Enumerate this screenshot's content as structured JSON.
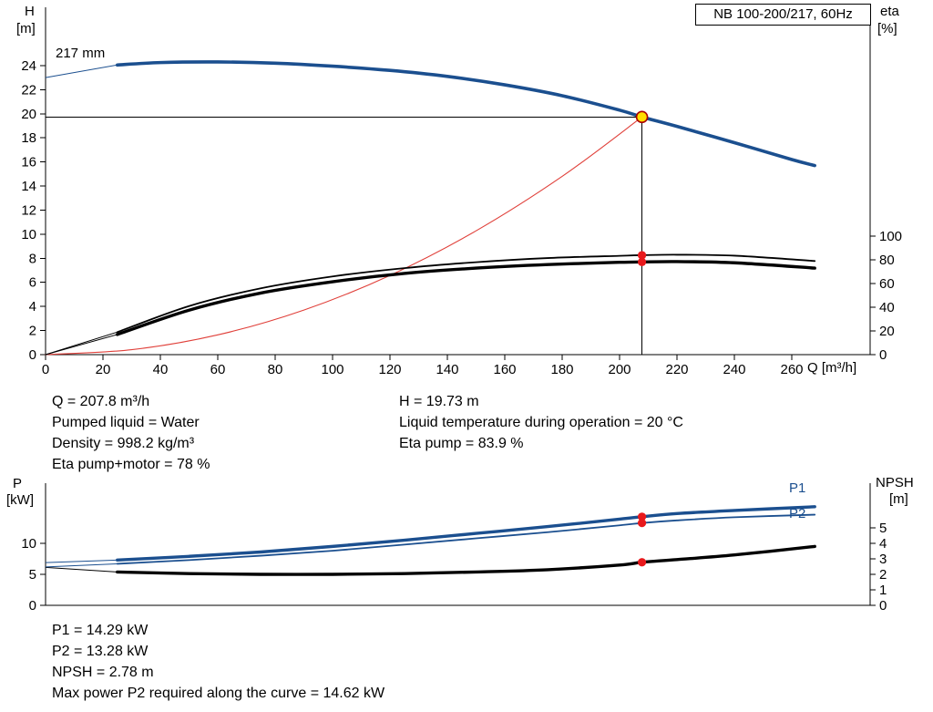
{
  "title_box": "NB 100-200/217, 60Hz",
  "labels": {
    "h": "H",
    "h_unit": "[m]",
    "eta": "eta",
    "eta_unit": "[%]",
    "q": "Q [m³/h]",
    "p": "P",
    "p_unit": "[kW]",
    "npsh": "NPSH",
    "npsh_unit": "[m]",
    "curve": "217 mm",
    "p1": "P1",
    "p2": "P2"
  },
  "info_top_left": [
    "Q = 207.8 m³/h",
    "Pumped liquid = Water",
    "Density = 998.2 kg/m³",
    "Eta pump+motor = 78 %"
  ],
  "info_top_right": [
    "H = 19.73 m",
    "Liquid temperature during operation = 20 °C",
    "Eta pump = 83.9 %"
  ],
  "info_bottom": [
    "P1 = 14.29 kW",
    "P2 = 13.28 kW",
    "NPSH = 2.78 m",
    "Max power P2 required along the curve = 14.62 kW"
  ],
  "colors": {
    "blue": "#1b4f8f",
    "black": "#000000",
    "red_curve": "#e0403a",
    "red_dot": "#e8191c",
    "yellow": "#ffdf00",
    "yellow_ring": "#aa0000"
  },
  "chart_data": [
    {
      "id": "head-efficiency",
      "type": "line",
      "xlabel": "Q [m³/h]",
      "ylabel_left": "H [m]",
      "ylabel_right": "eta [%]",
      "xlim": [
        0,
        287.3
      ],
      "x_ticks": [
        0,
        20,
        40,
        60,
        80,
        100,
        120,
        140,
        160,
        180,
        200,
        220,
        240,
        260
      ],
      "x_tick_labels": true,
      "ylim_left": [
        0,
        28.84
      ],
      "y_ticks_left": [
        0,
        2,
        4,
        6,
        8,
        10,
        12,
        14,
        16,
        18,
        20,
        22,
        24
      ],
      "ylim_right": [
        0,
        293.1
      ],
      "y_ticks_right": [
        0,
        20,
        40,
        60,
        80,
        100
      ],
      "duty_point": {
        "q": 207.8,
        "h": 19.73
      },
      "series": [
        {
          "name": "System curve",
          "axis": "left",
          "color": "#e0403a",
          "width": 1.1,
          "x": [
            0,
            30,
            60,
            90,
            120,
            150,
            180,
            207.8
          ],
          "y": [
            0,
            0.41,
            1.64,
            3.7,
            6.58,
            10.28,
            14.8,
            19.73
          ]
        },
        {
          "name": "Eta pump",
          "axis": "right",
          "color": "#000000",
          "width": 1.8,
          "lead_from": [
            0,
            0
          ],
          "x": [
            25,
            50,
            75,
            100,
            125,
            150,
            175,
            200,
            207.8,
            220,
            240,
            268
          ],
          "y": [
            19,
            41,
            56,
            66,
            73,
            78,
            81.5,
            83.4,
            83.9,
            84.3,
            83.5,
            79
          ]
        },
        {
          "name": "Eta pump+motor",
          "axis": "right",
          "color": "#000000",
          "width": 3.4,
          "lead_from": [
            0,
            0
          ],
          "x": [
            25,
            50,
            75,
            100,
            125,
            150,
            175,
            200,
            207.8,
            220,
            240,
            268
          ],
          "y": [
            17,
            37.5,
            52,
            61.5,
            68.5,
            73,
            76,
            77.9,
            78.2,
            78.5,
            77.5,
            73
          ]
        },
        {
          "name": "217 mm",
          "axis": "left",
          "color": "#1b4f8f",
          "width": 3.6,
          "lead_from": [
            0,
            23.0
          ],
          "x": [
            25,
            40,
            60,
            80,
            100,
            120,
            140,
            160,
            180,
            200,
            207.8,
            220,
            240,
            260,
            268
          ],
          "y": [
            24.05,
            24.25,
            24.3,
            24.2,
            23.95,
            23.6,
            23.1,
            22.4,
            21.5,
            20.3,
            19.73,
            18.95,
            17.6,
            16.2,
            15.7
          ]
        }
      ],
      "markers": [
        {
          "type": "dot",
          "axis": "right",
          "x": 207.8,
          "y": 78.2,
          "fill": "#e8191c"
        },
        {
          "type": "dot",
          "axis": "right",
          "x": 207.8,
          "y": 83.9,
          "fill": "#e8191c"
        },
        {
          "type": "duty",
          "axis": "left",
          "x": 207.8,
          "y": 19.73,
          "fill": "#ffdf00",
          "stroke": "#aa0000"
        }
      ]
    },
    {
      "id": "power-npsh",
      "type": "line",
      "xlabel": "",
      "ylabel_left": "P [kW]",
      "ylabel_right": "NPSH [m]",
      "xlim": [
        0,
        287.3
      ],
      "x_ticks": [],
      "x_tick_labels": false,
      "ylim_left": [
        0,
        19.7
      ],
      "y_ticks_left": [
        0,
        5,
        10
      ],
      "ylim_right": [
        0,
        7.88
      ],
      "y_ticks_right": [
        0,
        1,
        2,
        3,
        4,
        5
      ],
      "series": [
        {
          "name": "NPSH",
          "axis": "right",
          "color": "#000000",
          "width": 3.4,
          "lead_from": [
            0,
            2.45
          ],
          "x": [
            25,
            50,
            75,
            100,
            125,
            150,
            175,
            200,
            207.8,
            220,
            240,
            268
          ],
          "y": [
            2.15,
            2.05,
            2.0,
            2.0,
            2.05,
            2.15,
            2.3,
            2.6,
            2.78,
            2.95,
            3.25,
            3.8
          ]
        },
        {
          "name": "P2",
          "axis": "left",
          "color": "#1b4f8f",
          "width": 1.8,
          "lead_from": [
            0,
            6.2
          ],
          "x": [
            25,
            50,
            75,
            100,
            125,
            150,
            175,
            200,
            207.8,
            220,
            240,
            268
          ],
          "y": [
            6.7,
            7.3,
            8.0,
            8.8,
            9.8,
            10.8,
            11.8,
            12.9,
            13.28,
            13.7,
            14.2,
            14.62
          ]
        },
        {
          "name": "P1",
          "axis": "left",
          "color": "#1b4f8f",
          "width": 3.4,
          "lead_from": [
            0,
            6.9
          ],
          "x": [
            25,
            50,
            75,
            100,
            125,
            150,
            175,
            200,
            207.8,
            220,
            240,
            268
          ],
          "y": [
            7.3,
            7.9,
            8.6,
            9.5,
            10.5,
            11.6,
            12.7,
            13.9,
            14.29,
            14.8,
            15.3,
            15.9
          ]
        }
      ],
      "markers": [
        {
          "type": "dot",
          "axis": "left",
          "x": 207.8,
          "y": 14.29,
          "fill": "#e8191c"
        },
        {
          "type": "dot",
          "axis": "left",
          "x": 207.8,
          "y": 13.28,
          "fill": "#e8191c"
        },
        {
          "type": "dot",
          "axis": "right",
          "x": 207.8,
          "y": 2.78,
          "fill": "#e8191c"
        }
      ]
    }
  ]
}
